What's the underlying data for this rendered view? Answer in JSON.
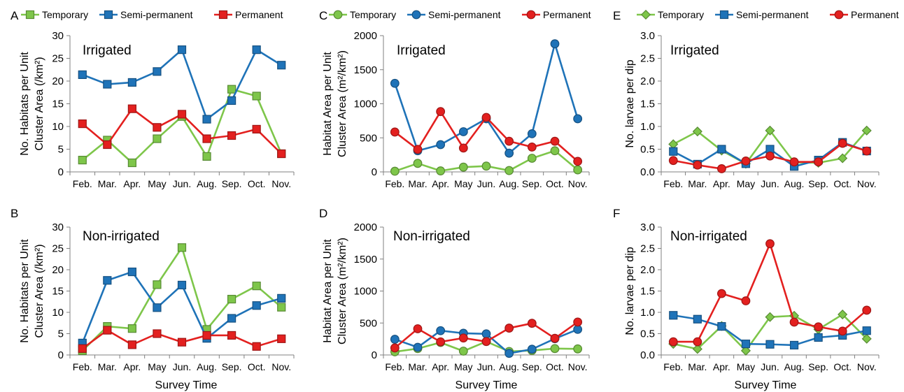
{
  "figure": {
    "series_names": [
      "Temporary",
      "Semi-permanent",
      "Permanent"
    ],
    "x_label": "Survey Time",
    "months": [
      "Feb.",
      "Mar.",
      "Apr.",
      "May",
      "Jun.",
      "Aug.",
      "Sep.",
      "Oct.",
      "Nov."
    ]
  },
  "chart_data": [
    {
      "type": "line",
      "panel": "A",
      "annotation": "Irrigated",
      "ylabel_lines": [
        "No. Habitats per Unit",
        "Cluster Area (/km²)"
      ],
      "categories": [
        "Feb.",
        "Mar.",
        "Apr.",
        "May",
        "Jun.",
        "Aug.",
        "Sep.",
        "Oct.",
        "Nov."
      ],
      "ylim": [
        0,
        30
      ],
      "yticks": [
        "0",
        "5",
        "10",
        "15",
        "20",
        "25",
        "30"
      ],
      "marker": "square",
      "legend": "top",
      "series": [
        {
          "name": "Temporary",
          "color": "#7ec64a",
          "values": [
            2.6,
            7.0,
            2.0,
            7.3,
            12.2,
            3.4,
            18.2,
            16.7,
            4.0
          ]
        },
        {
          "name": "Semi-permanent",
          "color": "#1f73b8",
          "values": [
            21.4,
            19.3,
            19.7,
            22.1,
            26.9,
            11.6,
            15.7,
            26.9,
            23.5
          ]
        },
        {
          "name": "Permanent",
          "color": "#e3201f",
          "values": [
            10.6,
            6.0,
            13.9,
            9.8,
            12.7,
            7.3,
            8.0,
            9.4,
            4.0
          ]
        }
      ]
    },
    {
      "type": "line",
      "panel": "B",
      "annotation": "Non-irrigated",
      "ylabel_lines": [
        "No. Habitats per Unit",
        "Cluster Area (/km²)"
      ],
      "categories": [
        "Feb.",
        "Mar.",
        "Apr.",
        "May",
        "Jun.",
        "Aug.",
        "Sep.",
        "Oct.",
        "Nov."
      ],
      "ylim": [
        0,
        30
      ],
      "yticks": [
        "0",
        "5",
        "10",
        "15",
        "20",
        "25",
        "30"
      ],
      "marker": "square",
      "series": [
        {
          "name": "Temporary",
          "color": "#7ec64a",
          "values": [
            1.0,
            6.7,
            6.2,
            16.5,
            25.2,
            6.0,
            13.1,
            16.2,
            11.2
          ]
        },
        {
          "name": "Semi-permanent",
          "color": "#1f73b8",
          "values": [
            2.8,
            17.5,
            19.5,
            11.1,
            16.4,
            3.9,
            8.6,
            11.6,
            13.3
          ]
        },
        {
          "name": "Permanent",
          "color": "#e3201f",
          "values": [
            1.5,
            5.8,
            2.4,
            5.0,
            3.0,
            4.6,
            4.6,
            2.0,
            3.8
          ]
        }
      ]
    },
    {
      "type": "line",
      "panel": "C",
      "annotation": "Irrigated",
      "ylabel_lines": [
        "Habitat Area per Unit",
        "Cluster Area (m²/km²)"
      ],
      "categories": [
        "Feb.",
        "Mar.",
        "Apr.",
        "May",
        "Jun.",
        "Aug.",
        "Sep.",
        "Oct.",
        "Nov."
      ],
      "ylim": [
        0,
        2000
      ],
      "yticks": [
        "0",
        "500",
        "1000",
        "1500",
        "2000"
      ],
      "marker": "circle",
      "legend": "top",
      "series": [
        {
          "name": "Temporary",
          "color": "#7ec64a",
          "values": [
            10,
            125,
            15,
            70,
            85,
            20,
            200,
            310,
            30
          ]
        },
        {
          "name": "Semi-permanent",
          "color": "#1f73b8",
          "values": [
            1300,
            310,
            400,
            590,
            780,
            275,
            560,
            1880,
            780
          ]
        },
        {
          "name": "Permanent",
          "color": "#e3201f",
          "values": [
            585,
            330,
            885,
            350,
            800,
            450,
            365,
            450,
            155
          ]
        }
      ]
    },
    {
      "type": "line",
      "panel": "D",
      "annotation": "Non-irrigated",
      "ylabel_lines": [
        "Habitat Area per Unit",
        "Cluster Area (m²/km²)"
      ],
      "categories": [
        "Feb.",
        "Mar.",
        "Apr.",
        "May",
        "Jun.",
        "Aug.",
        "Sep.",
        "Oct.",
        "Nov."
      ],
      "ylim": [
        0,
        2000
      ],
      "yticks": [
        "0",
        "500",
        "1000",
        "1500",
        "2000"
      ],
      "marker": "circle",
      "series": [
        {
          "name": "Temporary",
          "color": "#7ec64a",
          "values": [
            50,
            100,
            195,
            60,
            210,
            55,
            70,
            100,
            95
          ]
        },
        {
          "name": "Semi-permanent",
          "color": "#1f73b8",
          "values": [
            245,
            120,
            380,
            340,
            330,
            25,
            90,
            255,
            400
          ]
        },
        {
          "name": "Permanent",
          "color": "#e3201f",
          "values": [
            110,
            410,
            205,
            265,
            210,
            420,
            495,
            260,
            515
          ]
        }
      ]
    },
    {
      "type": "line",
      "panel": "E",
      "annotation": "Irrigated",
      "ylabel_lines": [
        "No. larvae per dip"
      ],
      "categories": [
        "Feb.",
        "Mar.",
        "Apr.",
        "May",
        "Jun.",
        "Aug.",
        "Sep.",
        "Oct.",
        "Nov."
      ],
      "ylim": [
        0,
        3.0
      ],
      "yticks": [
        "0.0",
        "0.5",
        "1.0",
        "1.5",
        "2.0",
        "2.5",
        "3.0"
      ],
      "marker": "mixed",
      "legend": "top",
      "series": [
        {
          "name": "Temporary",
          "color": "#7ec64a",
          "marker": "diamond",
          "values": [
            0.61,
            0.89,
            0.47,
            0.18,
            0.91,
            0.21,
            0.2,
            0.3,
            0.91
          ]
        },
        {
          "name": "Semi-permanent",
          "color": "#1f73b8",
          "marker": "square",
          "values": [
            0.45,
            0.17,
            0.5,
            0.18,
            0.5,
            0.12,
            0.26,
            0.65,
            0.46
          ]
        },
        {
          "name": "Permanent",
          "color": "#e3201f",
          "marker": "circle",
          "values": [
            0.25,
            0.15,
            0.07,
            0.24,
            0.35,
            0.22,
            0.22,
            0.63,
            0.46
          ]
        }
      ]
    },
    {
      "type": "line",
      "panel": "F",
      "annotation": "Non-irrigated",
      "ylabel_lines": [
        "No. larvae per dip"
      ],
      "categories": [
        "Feb.",
        "Mar.",
        "Apr.",
        "May",
        "Jun.",
        "Aug.",
        "Sep.",
        "Oct.",
        "Nov."
      ],
      "ylim": [
        0,
        3.0
      ],
      "yticks": [
        "0.0",
        "0.5",
        "1.0",
        "1.5",
        "2.0",
        "2.5",
        "3.0"
      ],
      "marker": "mixed",
      "series": [
        {
          "name": "Temporary",
          "color": "#7ec64a",
          "marker": "diamond",
          "values": [
            0.26,
            0.14,
            0.68,
            0.1,
            0.89,
            0.92,
            0.6,
            0.95,
            0.38
          ]
        },
        {
          "name": "Semi-permanent",
          "color": "#1f73b8",
          "marker": "square",
          "values": [
            0.93,
            0.84,
            0.67,
            0.26,
            0.25,
            0.23,
            0.41,
            0.46,
            0.57
          ]
        },
        {
          "name": "Permanent",
          "color": "#e3201f",
          "marker": "circle",
          "values": [
            0.31,
            0.31,
            1.44,
            1.27,
            2.61,
            0.77,
            0.66,
            0.56,
            1.05
          ]
        }
      ]
    }
  ]
}
